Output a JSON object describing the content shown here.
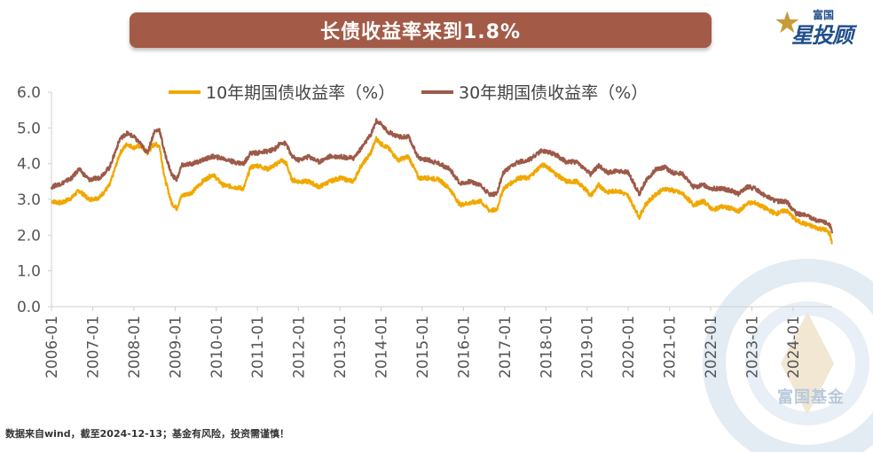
{
  "header": {
    "title": "长债收益率来到1.8%"
  },
  "logo": {
    "small": "富国",
    "big": "星投顾"
  },
  "watermark": {
    "text": "富国基金"
  },
  "footnote": "数据来自wind，截至2024-12-13；基金有风险，投资需谨慎！",
  "colors": {
    "title_bg": "#a35b48",
    "series_10y": "#f0a800",
    "series_30y": "#9c5a48",
    "axis": "#cfcfcf"
  },
  "chart_data": {
    "type": "line",
    "ylim": [
      0,
      6
    ],
    "y_ticks": [
      "0.0",
      "1.0",
      "2.0",
      "3.0",
      "4.0",
      "5.0",
      "6.0"
    ],
    "x_ticks": [
      "2006-01",
      "2007-01",
      "2008-01",
      "2009-01",
      "2010-01",
      "2011-01",
      "2012-01",
      "2013-01",
      "2014-01",
      "2015-01",
      "2016-01",
      "2017-01",
      "2018-01",
      "2019-01",
      "2020-01",
      "2021-01",
      "2022-01",
      "2023-01",
      "2024-01"
    ],
    "x_range": [
      "2006-01-01",
      "2024-12-13"
    ],
    "grid": false,
    "legend": "top-center",
    "series": [
      {
        "name": "10年期国债收益率（%）",
        "color": "#f0a800",
        "points": [
          [
            "2006-01-01",
            2.95
          ],
          [
            "2006-04-01",
            2.9
          ],
          [
            "2006-07-01",
            3.05
          ],
          [
            "2006-09-01",
            3.25
          ],
          [
            "2006-12-01",
            3.0
          ],
          [
            "2007-03-01",
            3.05
          ],
          [
            "2007-06-01",
            3.4
          ],
          [
            "2007-09-01",
            4.3
          ],
          [
            "2007-11-01",
            4.55
          ],
          [
            "2008-01-01",
            4.45
          ],
          [
            "2008-03-01",
            4.5
          ],
          [
            "2008-05-01",
            4.3
          ],
          [
            "2008-07-01",
            4.55
          ],
          [
            "2008-08-15",
            4.5
          ],
          [
            "2008-10-01",
            3.6
          ],
          [
            "2008-12-01",
            2.9
          ],
          [
            "2009-01-15",
            2.75
          ],
          [
            "2009-03-01",
            3.1
          ],
          [
            "2009-06-01",
            3.2
          ],
          [
            "2009-09-01",
            3.5
          ],
          [
            "2009-12-01",
            3.7
          ],
          [
            "2010-03-01",
            3.4
          ],
          [
            "2010-06-01",
            3.35
          ],
          [
            "2010-09-01",
            3.3
          ],
          [
            "2010-11-01",
            3.9
          ],
          [
            "2011-01-01",
            3.95
          ],
          [
            "2011-04-01",
            3.85
          ],
          [
            "2011-06-01",
            3.95
          ],
          [
            "2011-08-01",
            4.1
          ],
          [
            "2011-09-15",
            4.0
          ],
          [
            "2011-11-01",
            3.55
          ],
          [
            "2012-01-01",
            3.5
          ],
          [
            "2012-04-01",
            3.5
          ],
          [
            "2012-07-01",
            3.35
          ],
          [
            "2012-10-01",
            3.5
          ],
          [
            "2013-01-01",
            3.6
          ],
          [
            "2013-05-01",
            3.5
          ],
          [
            "2013-07-01",
            3.9
          ],
          [
            "2013-10-01",
            4.3
          ],
          [
            "2013-11-20",
            4.7
          ],
          [
            "2014-01-01",
            4.55
          ],
          [
            "2014-03-01",
            4.45
          ],
          [
            "2014-06-01",
            4.1
          ],
          [
            "2014-09-01",
            4.2
          ],
          [
            "2014-12-01",
            3.6
          ],
          [
            "2015-03-01",
            3.6
          ],
          [
            "2015-06-01",
            3.55
          ],
          [
            "2015-09-01",
            3.3
          ],
          [
            "2015-12-01",
            2.85
          ],
          [
            "2016-03-01",
            2.9
          ],
          [
            "2016-06-01",
            2.95
          ],
          [
            "2016-08-15",
            2.7
          ],
          [
            "2016-10-20",
            2.7
          ],
          [
            "2016-12-20",
            3.3
          ],
          [
            "2017-02-01",
            3.4
          ],
          [
            "2017-05-01",
            3.6
          ],
          [
            "2017-08-01",
            3.6
          ],
          [
            "2017-11-20",
            3.95
          ],
          [
            "2018-01-01",
            3.95
          ],
          [
            "2018-04-01",
            3.7
          ],
          [
            "2018-07-01",
            3.5
          ],
          [
            "2018-10-01",
            3.5
          ],
          [
            "2018-12-31",
            3.25
          ],
          [
            "2019-02-01",
            3.1
          ],
          [
            "2019-04-15",
            3.4
          ],
          [
            "2019-07-01",
            3.2
          ],
          [
            "2019-10-01",
            3.25
          ],
          [
            "2020-01-01",
            3.1
          ],
          [
            "2020-04-08",
            2.5
          ],
          [
            "2020-06-01",
            2.85
          ],
          [
            "2020-09-01",
            3.15
          ],
          [
            "2020-11-20",
            3.3
          ],
          [
            "2021-02-01",
            3.25
          ],
          [
            "2021-05-01",
            3.15
          ],
          [
            "2021-08-01",
            2.85
          ],
          [
            "2021-11-01",
            2.95
          ],
          [
            "2022-01-20",
            2.7
          ],
          [
            "2022-04-01",
            2.8
          ],
          [
            "2022-07-01",
            2.75
          ],
          [
            "2022-09-01",
            2.65
          ],
          [
            "2022-11-25",
            2.9
          ],
          [
            "2023-02-01",
            2.9
          ],
          [
            "2023-05-01",
            2.75
          ],
          [
            "2023-08-01",
            2.6
          ],
          [
            "2023-11-01",
            2.7
          ],
          [
            "2024-02-01",
            2.4
          ],
          [
            "2024-05-01",
            2.3
          ],
          [
            "2024-08-01",
            2.2
          ],
          [
            "2024-10-15",
            2.15
          ],
          [
            "2024-11-20",
            2.05
          ],
          [
            "2024-12-13",
            1.78
          ]
        ]
      },
      {
        "name": "30年期国债收益率（%）",
        "color": "#9c5a48",
        "points": [
          [
            "2006-01-01",
            3.35
          ],
          [
            "2006-04-01",
            3.45
          ],
          [
            "2006-07-01",
            3.6
          ],
          [
            "2006-09-01",
            3.85
          ],
          [
            "2006-12-01",
            3.55
          ],
          [
            "2007-03-01",
            3.6
          ],
          [
            "2007-06-01",
            3.9
          ],
          [
            "2007-09-01",
            4.7
          ],
          [
            "2007-11-01",
            4.85
          ],
          [
            "2008-01-01",
            4.75
          ],
          [
            "2008-03-01",
            4.55
          ],
          [
            "2008-05-01",
            4.3
          ],
          [
            "2008-07-01",
            4.9
          ],
          [
            "2008-08-15",
            4.95
          ],
          [
            "2008-10-01",
            4.3
          ],
          [
            "2008-12-01",
            3.7
          ],
          [
            "2009-01-15",
            3.55
          ],
          [
            "2009-03-01",
            3.95
          ],
          [
            "2009-06-01",
            4.0
          ],
          [
            "2009-09-01",
            4.1
          ],
          [
            "2009-12-01",
            4.2
          ],
          [
            "2010-03-01",
            4.15
          ],
          [
            "2010-06-01",
            4.05
          ],
          [
            "2010-09-01",
            4.0
          ],
          [
            "2010-11-01",
            4.3
          ],
          [
            "2011-01-01",
            4.3
          ],
          [
            "2011-04-01",
            4.35
          ],
          [
            "2011-06-01",
            4.4
          ],
          [
            "2011-08-01",
            4.6
          ],
          [
            "2011-09-15",
            4.55
          ],
          [
            "2011-11-01",
            4.2
          ],
          [
            "2012-01-01",
            4.1
          ],
          [
            "2012-04-01",
            4.2
          ],
          [
            "2012-07-01",
            4.05
          ],
          [
            "2012-10-01",
            4.2
          ],
          [
            "2013-01-01",
            4.2
          ],
          [
            "2013-05-01",
            4.15
          ],
          [
            "2013-07-01",
            4.4
          ],
          [
            "2013-10-01",
            4.8
          ],
          [
            "2013-11-20",
            5.2
          ],
          [
            "2014-01-01",
            5.1
          ],
          [
            "2014-03-01",
            4.9
          ],
          [
            "2014-06-01",
            4.75
          ],
          [
            "2014-09-01",
            4.75
          ],
          [
            "2014-12-01",
            4.15
          ],
          [
            "2015-03-01",
            4.1
          ],
          [
            "2015-06-01",
            4.0
          ],
          [
            "2015-09-01",
            3.85
          ],
          [
            "2015-12-01",
            3.45
          ],
          [
            "2016-03-01",
            3.5
          ],
          [
            "2016-06-01",
            3.4
          ],
          [
            "2016-08-15",
            3.15
          ],
          [
            "2016-10-20",
            3.15
          ],
          [
            "2016-12-20",
            3.75
          ],
          [
            "2017-02-01",
            3.85
          ],
          [
            "2017-05-01",
            4.05
          ],
          [
            "2017-08-01",
            4.1
          ],
          [
            "2017-11-20",
            4.35
          ],
          [
            "2018-01-01",
            4.35
          ],
          [
            "2018-04-01",
            4.25
          ],
          [
            "2018-07-01",
            4.05
          ],
          [
            "2018-10-01",
            4.05
          ],
          [
            "2018-12-31",
            3.8
          ],
          [
            "2019-02-01",
            3.7
          ],
          [
            "2019-04-15",
            3.95
          ],
          [
            "2019-07-01",
            3.75
          ],
          [
            "2019-10-01",
            3.8
          ],
          [
            "2020-01-01",
            3.75
          ],
          [
            "2020-04-08",
            3.15
          ],
          [
            "2020-06-01",
            3.5
          ],
          [
            "2020-09-01",
            3.85
          ],
          [
            "2020-11-20",
            3.9
          ],
          [
            "2021-02-01",
            3.75
          ],
          [
            "2021-05-01",
            3.7
          ],
          [
            "2021-08-01",
            3.35
          ],
          [
            "2021-11-01",
            3.4
          ],
          [
            "2022-01-20",
            3.3
          ],
          [
            "2022-04-01",
            3.3
          ],
          [
            "2022-07-01",
            3.25
          ],
          [
            "2022-09-01",
            3.15
          ],
          [
            "2022-11-25",
            3.35
          ],
          [
            "2023-02-01",
            3.3
          ],
          [
            "2023-05-01",
            3.1
          ],
          [
            "2023-08-01",
            2.95
          ],
          [
            "2023-11-01",
            2.95
          ],
          [
            "2024-02-01",
            2.6
          ],
          [
            "2024-05-01",
            2.55
          ],
          [
            "2024-08-01",
            2.4
          ],
          [
            "2024-10-15",
            2.35
          ],
          [
            "2024-11-20",
            2.3
          ],
          [
            "2024-12-13",
            2.05
          ]
        ]
      }
    ]
  }
}
